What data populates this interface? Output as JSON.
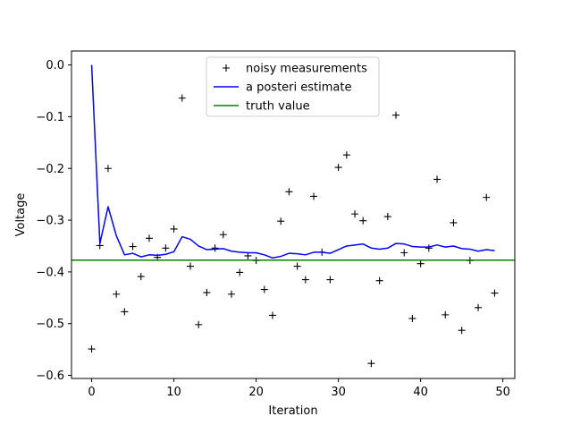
{
  "chart_data": {
    "type": "line",
    "title": "",
    "xlabel": "Iteration",
    "ylabel": "Voltage",
    "xlim": [
      -2.45,
      51.45
    ],
    "ylim": [
      -0.606,
      0.027
    ],
    "x_ticks": [
      0,
      10,
      20,
      30,
      40,
      50
    ],
    "x_tick_labels": [
      "0",
      "10",
      "20",
      "30",
      "40",
      "50"
    ],
    "y_ticks": [
      0.0,
      -0.1,
      -0.2,
      -0.3,
      -0.4,
      -0.5,
      -0.6
    ],
    "y_tick_labels": [
      "0.0",
      "−0.1",
      "−0.2",
      "−0.3",
      "−0.4",
      "−0.5",
      "−0.6"
    ],
    "grid": false,
    "legend_position": "top-center",
    "series": [
      {
        "name": "noisy measurements",
        "style": "markers",
        "marker": "+",
        "color": "#000000",
        "x": [
          0,
          1,
          2,
          3,
          4,
          5,
          6,
          7,
          8,
          9,
          10,
          11,
          12,
          13,
          14,
          15,
          16,
          17,
          18,
          19,
          20,
          21,
          22,
          23,
          24,
          25,
          26,
          27,
          28,
          29,
          30,
          31,
          32,
          33,
          34,
          35,
          36,
          37,
          38,
          39,
          40,
          41,
          42,
          43,
          44,
          45,
          46,
          47,
          48,
          49
        ],
        "values": [
          -0.549,
          -0.349,
          -0.2,
          -0.443,
          -0.477,
          -0.351,
          -0.409,
          -0.335,
          -0.372,
          -0.354,
          -0.317,
          -0.064,
          -0.389,
          -0.502,
          -0.44,
          -0.354,
          -0.328,
          -0.443,
          -0.401,
          -0.369,
          -0.378,
          -0.434,
          -0.484,
          -0.302,
          -0.245,
          -0.389,
          -0.415,
          -0.254,
          -0.362,
          -0.415,
          -0.198,
          -0.174,
          -0.288,
          -0.301,
          -0.577,
          -0.417,
          -0.293,
          -0.097,
          -0.363,
          -0.49,
          -0.384,
          -0.354,
          -0.221,
          -0.483,
          -0.305,
          -0.513,
          -0.378,
          -0.469,
          -0.256,
          -0.441
        ]
      },
      {
        "name": "a posteri estimate",
        "style": "line",
        "color": "#0000ff",
        "x": [
          0,
          1,
          2,
          3,
          4,
          5,
          6,
          7,
          8,
          9,
          10,
          11,
          12,
          13,
          14,
          15,
          16,
          17,
          18,
          19,
          20,
          21,
          22,
          23,
          24,
          25,
          26,
          27,
          28,
          29,
          30,
          31,
          32,
          33,
          34,
          35,
          36,
          37,
          38,
          39,
          40,
          41,
          42,
          43,
          44,
          45,
          46,
          47,
          48,
          49
        ],
        "values": [
          0.0,
          -0.345,
          -0.274,
          -0.33,
          -0.367,
          -0.364,
          -0.371,
          -0.367,
          -0.368,
          -0.366,
          -0.361,
          -0.332,
          -0.337,
          -0.35,
          -0.357,
          -0.356,
          -0.355,
          -0.36,
          -0.362,
          -0.363,
          -0.363,
          -0.367,
          -0.373,
          -0.37,
          -0.364,
          -0.365,
          -0.367,
          -0.362,
          -0.362,
          -0.364,
          -0.357,
          -0.35,
          -0.348,
          -0.346,
          -0.354,
          -0.356,
          -0.354,
          -0.345,
          -0.346,
          -0.351,
          -0.352,
          -0.352,
          -0.348,
          -0.352,
          -0.35,
          -0.355,
          -0.356,
          -0.36,
          -0.357,
          -0.359
        ]
      },
      {
        "name": "truth value",
        "style": "hline",
        "color": "#008000",
        "values": [
          -0.37727
        ]
      }
    ]
  }
}
